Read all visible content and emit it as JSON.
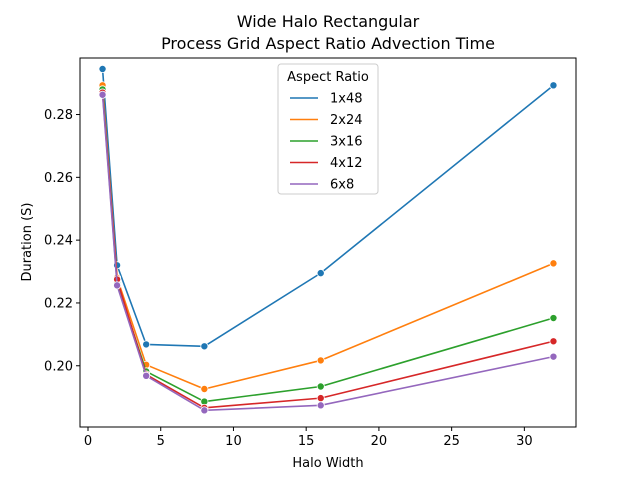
{
  "chart_data": {
    "type": "line",
    "title_lines": [
      "Wide Halo Rectangular",
      "Process Grid Aspect Ratio Advection Time"
    ],
    "xlabel": "Halo Width",
    "ylabel": "Duration (S)",
    "xlim": [
      -0.55,
      33.55
    ],
    "ylim": [
      0.1805,
      0.298
    ],
    "xticks": [
      0,
      5,
      10,
      15,
      20,
      25,
      30
    ],
    "yticks": [
      0.2,
      0.22,
      0.24,
      0.26,
      0.28
    ],
    "ytick_labels": [
      "0.20",
      "0.22",
      "0.24",
      "0.26",
      "0.28"
    ],
    "legend_title": "Aspect Ratio",
    "legend_position": "top-center",
    "x": [
      1,
      2,
      4,
      8,
      16,
      32
    ],
    "series": [
      {
        "name": "1x48",
        "color": "#1f77b4",
        "values": [
          0.2945,
          0.232,
          0.2068,
          0.2062,
          0.2295,
          0.2893
        ]
      },
      {
        "name": "2x24",
        "color": "#ff7f0e",
        "values": [
          0.2893,
          0.228,
          0.2003,
          0.1926,
          0.2017,
          0.2326
        ]
      },
      {
        "name": "3x16",
        "color": "#2ca02c",
        "values": [
          0.288,
          0.2262,
          0.1982,
          0.1886,
          0.1934,
          0.2152
        ]
      },
      {
        "name": "4x12",
        "color": "#d62728",
        "values": [
          0.287,
          0.2275,
          0.1972,
          0.1866,
          0.1897,
          0.2078
        ]
      },
      {
        "name": "6x8",
        "color": "#9467bd",
        "values": [
          0.2863,
          0.2256,
          0.1968,
          0.1858,
          0.1874,
          0.2029
        ]
      }
    ]
  }
}
